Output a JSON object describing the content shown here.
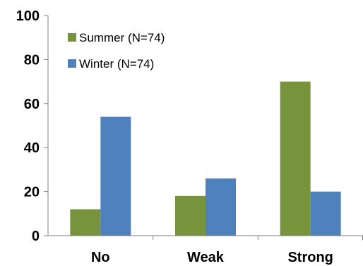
{
  "chart_data": {
    "type": "bar",
    "categories": [
      "No",
      "Weak",
      "Strong"
    ],
    "series": [
      {
        "name": "Summer (N=74)",
        "values": [
          12,
          18,
          70
        ],
        "color": "#77933c"
      },
      {
        "name": "Winter (N=74)",
        "values": [
          54,
          26,
          20
        ],
        "color": "#4f81bd"
      }
    ],
    "title": "",
    "xlabel": "",
    "ylabel": "",
    "ylim": [
      0,
      100
    ],
    "yticks": [
      "0",
      "20",
      "40",
      "60",
      "80",
      "100"
    ],
    "grid": false,
    "legend": "top-left"
  }
}
